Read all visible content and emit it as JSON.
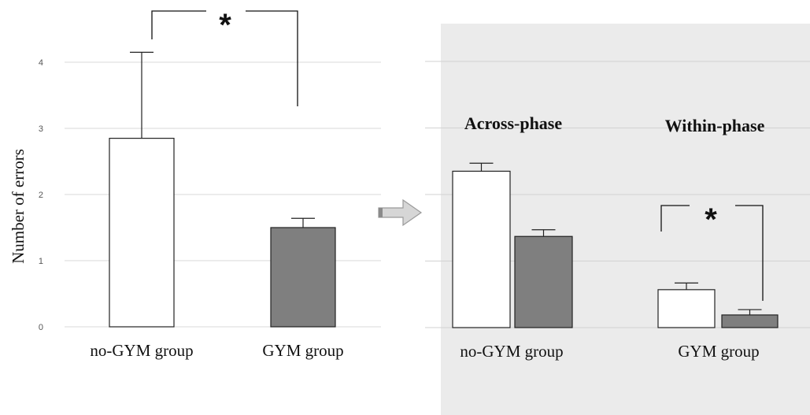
{
  "chart_data": [
    {
      "type": "bar",
      "title": "",
      "ylabel": "Number of errors",
      "ylim": [
        0,
        4.5
      ],
      "yticks": [
        "0",
        "1",
        "2",
        "3",
        "4"
      ],
      "categories": [
        "no-GYM group",
        "GYM group"
      ],
      "values": [
        2.85,
        1.5
      ],
      "errors": [
        1.3,
        0.14
      ],
      "bar_colors": [
        "#ffffff",
        "#7f7f7f"
      ],
      "significance": "*",
      "grid": true
    },
    {
      "type": "bar",
      "title": "",
      "ylim": [
        0,
        4.5
      ],
      "groups": [
        {
          "heading": "Across-phase",
          "label": "no-GYM group",
          "values": [
            2.35,
            1.37
          ],
          "errors": [
            0.12,
            0.1
          ]
        },
        {
          "heading": "Within-phase",
          "label": "GYM group",
          "values": [
            0.57,
            0.19
          ],
          "errors": [
            0.1,
            0.08
          ]
        }
      ],
      "bar_colors": [
        "#ffffff",
        "#7f7f7f"
      ],
      "significance": "*",
      "panel_background": "#ebebeb",
      "grid": true
    }
  ],
  "arrow_icon": "right-arrow-icon"
}
